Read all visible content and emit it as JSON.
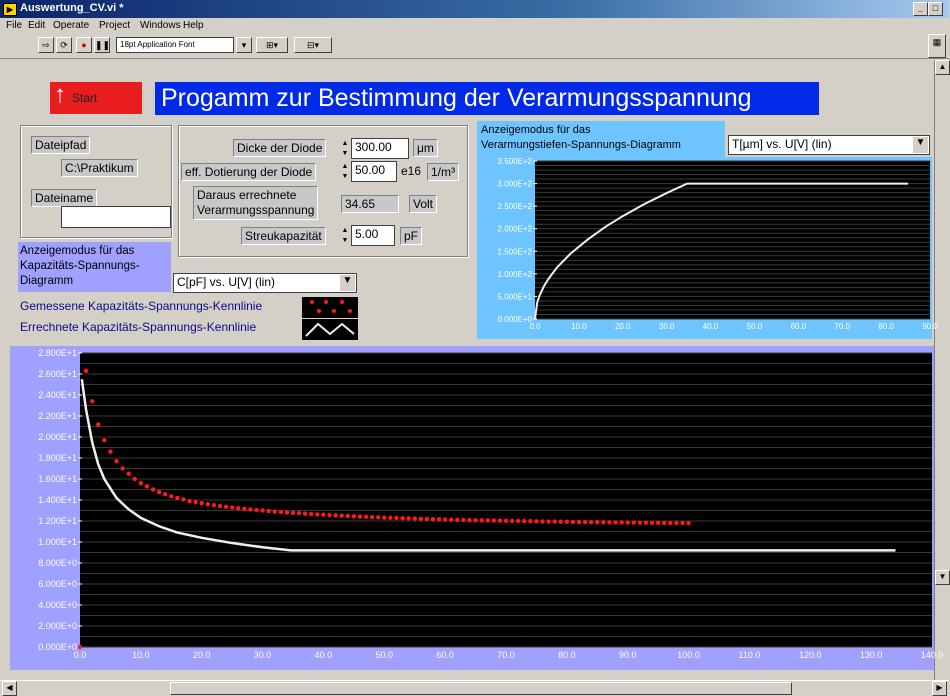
{
  "window": {
    "title": "Auswertung_CV.vi *",
    "app_icon": "labview-icon",
    "min": "_",
    "max": "□",
    "close": "×"
  },
  "menu": [
    "File",
    "Edit",
    "Operate",
    "Project",
    "Windows",
    "Help"
  ],
  "toolbar": {
    "font_select": "18pt Application Font"
  },
  "start": {
    "label": "Start",
    "arrow": "↑"
  },
  "title": "Progamm zur Bestimmung der Verarmungsspannung",
  "file": {
    "path_label": "Dateipfad",
    "path_value": "C:\\Praktikum",
    "name_label": "Dateiname",
    "name_value": ""
  },
  "params": {
    "dicke_label": "Dicke der Diode",
    "dicke_value": "300.00",
    "dicke_unit": "μm",
    "dotierung_label": "eff. Dotierung der Diode",
    "dotierung_value": "50.00",
    "dotierung_exp": "e16",
    "dotierung_unit": "1/m³",
    "verarmung_label_1": "Daraus errechnete",
    "verarmung_label_2": "Verarmungsspannung",
    "verarmung_value": "34.65",
    "verarmung_unit": "Volt",
    "streu_label": "Streukapazität",
    "streu_value": "5.00",
    "streu_unit": "pF"
  },
  "mode_top": {
    "label_1": "Anzeigemodus für das",
    "label_2": "Verarmungstiefen-Spannungs-Diagramm",
    "selected": "T[µm] vs. U[V] (lin)"
  },
  "mode_bottom": {
    "label_1": "Anzeigemodus für das",
    "label_2": "Kapazitäts-Spannungs-",
    "label_3": "Diagramm",
    "selected": "C[pF] vs. U[V] (lin)"
  },
  "legend": {
    "measured": "Gemessene Kapazitäts-Spannungs-Kennlinie",
    "computed": "Errechnete Kapazitäts-Spannungs-Kennlinie"
  },
  "colors": {
    "start_red": "#e81d1d",
    "title_blue": "#0029e8",
    "plot_bg": "#000000",
    "measured": "#ff1a1a",
    "computed": "#f0f0f0"
  },
  "chart_data": [
    {
      "type": "line",
      "xlabel": "",
      "ylabel": "",
      "xlim": [
        0,
        90
      ],
      "ylim": [
        0,
        350
      ],
      "x_ticks": [
        "0.0",
        "10.0",
        "20.0",
        "30.0",
        "40.0",
        "50.0",
        "60.0",
        "70.0",
        "80.0",
        "90.0"
      ],
      "y_ticks": [
        "0.000E+0",
        "5.000E+1",
        "1.000E+2",
        "1.500E+2",
        "2.000E+2",
        "2.500E+2",
        "3.000E+2",
        "3.500E+2"
      ],
      "series": [
        {
          "x": [
            0,
            0.5,
            1,
            2,
            3,
            5,
            8,
            12,
            16,
            20,
            25,
            30,
            34.65,
            40,
            50,
            60,
            70,
            80,
            85
          ],
          "y": [
            0,
            36,
            51,
            72,
            88,
            114,
            144,
            176,
            204,
            228,
            255,
            279,
            300,
            300,
            300,
            300,
            300,
            300,
            300
          ]
        }
      ]
    },
    {
      "type": "scatter",
      "xlabel": "",
      "ylabel": "",
      "xlim": [
        0,
        140
      ],
      "ylim": [
        0,
        28
      ],
      "x_ticks": [
        "0.0",
        "10.0",
        "20.0",
        "30.0",
        "40.0",
        "50.0",
        "60.0",
        "70.0",
        "80.0",
        "90.0",
        "100.0",
        "110.0",
        "120.0",
        "130.0",
        "140.0"
      ],
      "y_ticks": [
        "0.000E+0",
        "2.000E+0",
        "4.000E+0",
        "6.000E+0",
        "8.000E+0",
        "1.000E+1",
        "1.200E+1",
        "1.400E+1",
        "1.600E+1",
        "1.800E+1",
        "2.000E+1",
        "2.200E+1",
        "2.400E+1",
        "2.600E+1",
        "2.800E+1"
      ],
      "series": [
        {
          "x": [
            0,
            1,
            2,
            3,
            4,
            5,
            6,
            7,
            8,
            9,
            10,
            11,
            12,
            13,
            14,
            15,
            16,
            17,
            18,
            19,
            20,
            21,
            22,
            23,
            24,
            25,
            26,
            27,
            28,
            29,
            30,
            31,
            32,
            33,
            34,
            35,
            36,
            37,
            38,
            39,
            40,
            41,
            42,
            43,
            44,
            45,
            46,
            47,
            48,
            49,
            50,
            51,
            52,
            53,
            54,
            55,
            56,
            57,
            58,
            59,
            60,
            61,
            62,
            63,
            64,
            65,
            66,
            67,
            68,
            69,
            70,
            71,
            72,
            73,
            74,
            75,
            76,
            77,
            78,
            79,
            80,
            81,
            82,
            83,
            84,
            85,
            86,
            87,
            88,
            89,
            90,
            91,
            92,
            93,
            94,
            95,
            96,
            97,
            98,
            99,
            100
          ],
          "y": [
            0,
            26.3,
            23.4,
            21.2,
            19.7,
            18.6,
            17.7,
            17.0,
            16.5,
            16.0,
            15.6,
            15.3,
            15.0,
            14.75,
            14.55,
            14.35,
            14.2,
            14.05,
            13.9,
            13.8,
            13.7,
            13.6,
            13.5,
            13.42,
            13.35,
            13.28,
            13.22,
            13.16,
            13.1,
            13.05,
            13.0,
            12.95,
            12.9,
            12.86,
            12.82,
            12.78,
            12.74,
            12.7,
            12.66,
            12.63,
            12.6,
            12.57,
            12.54,
            12.51,
            12.48,
            12.45,
            12.42,
            12.4,
            12.37,
            12.35,
            12.33,
            12.31,
            12.29,
            12.27,
            12.25,
            12.23,
            12.21,
            12.19,
            12.17,
            12.16,
            12.14,
            12.12,
            12.11,
            12.1,
            12.08,
            12.07,
            12.06,
            12.05,
            12.04,
            12.03,
            12.02,
            12.01,
            12.0,
            11.99,
            11.98,
            11.97,
            11.96,
            11.95,
            11.94,
            11.93,
            11.92,
            11.91,
            11.9,
            11.9,
            11.89,
            11.88,
            11.88,
            11.87,
            11.86,
            11.86,
            11.85,
            11.85,
            11.84,
            11.84,
            11.83,
            11.83,
            11.82,
            11.82,
            11.81,
            11.81,
            11.8
          ]
        },
        {
          "x": [
            0.3,
            1,
            2,
            3,
            4,
            6,
            8,
            10,
            13,
            16,
            20,
            25,
            30,
            34.65,
            60,
            100,
            134
          ],
          "y": [
            25.5,
            22.6,
            19.5,
            17.4,
            16.0,
            14.2,
            13.1,
            12.3,
            11.5,
            10.9,
            10.4,
            9.9,
            9.5,
            9.2,
            9.2,
            9.2,
            9.2
          ]
        }
      ]
    }
  ]
}
